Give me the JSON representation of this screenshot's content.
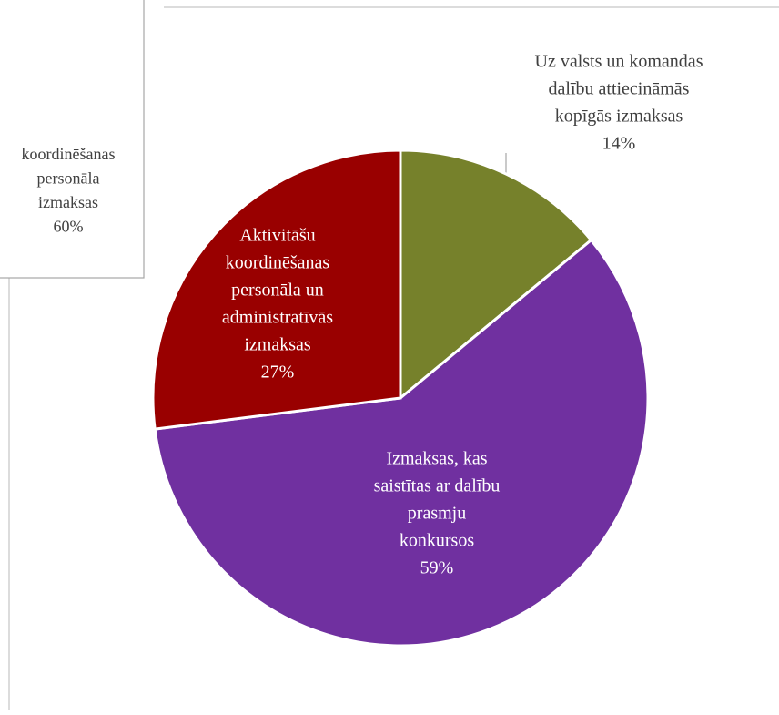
{
  "chart_data": {
    "type": "pie",
    "categories": [
      [
        "Uz valsts un komandas",
        "dalību attiecināmās",
        "kopīgās izmaksas"
      ],
      [
        "Izmaksas, kas",
        "saistītas ar dalību",
        "prasmju",
        "konkursos"
      ],
      [
        "Aktivitāšu",
        "koordinēšanas",
        "personāla un",
        "administratīvās",
        "izmaksas"
      ]
    ],
    "values": [
      14,
      59,
      27
    ],
    "value_labels": [
      "14%",
      "59%",
      "27%"
    ],
    "colors": [
      "#76812b",
      "#7030a0",
      "#990000"
    ],
    "cropped_label": {
      "lines": [
        "koordinēšanas",
        "personāla",
        "izmaksas"
      ],
      "value": 60,
      "value_label": "60%"
    }
  }
}
